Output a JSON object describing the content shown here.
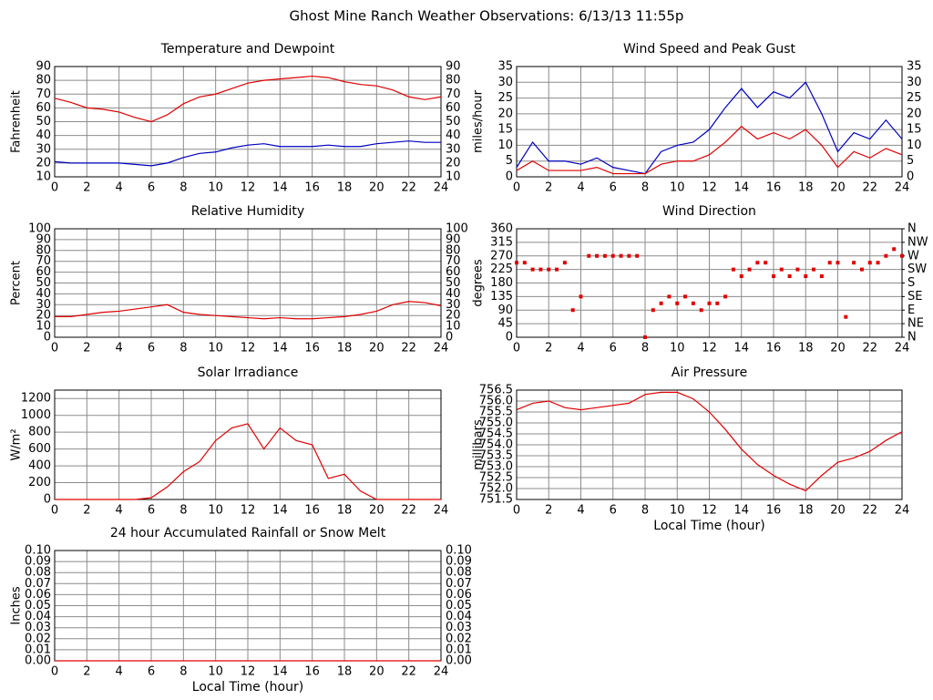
{
  "title": "Ghost Mine Ranch Weather Observations: 6/13/13 11:55p",
  "chart_data": [
    {
      "type": "line",
      "title": "Temperature and Dewpoint",
      "ylabel": "Fahrenheit",
      "mirror_y_labels": true,
      "x": [
        0,
        1,
        2,
        3,
        4,
        5,
        6,
        7,
        8,
        9,
        10,
        11,
        12,
        13,
        14,
        15,
        16,
        17,
        18,
        19,
        20,
        21,
        22,
        23,
        24
      ],
      "series": [
        {
          "color": "#e00000",
          "values": [
            67,
            64,
            60,
            59,
            57,
            53,
            50,
            55,
            63,
            68,
            70,
            74,
            78,
            80,
            81,
            82,
            83,
            82,
            79,
            77,
            76,
            73,
            68,
            66,
            68
          ]
        },
        {
          "color": "#0000c0",
          "values": [
            21,
            20,
            20,
            20,
            20,
            19,
            18,
            20,
            24,
            27,
            28,
            31,
            33,
            34,
            32,
            32,
            32,
            33,
            32,
            32,
            34,
            35,
            36,
            35,
            35
          ]
        }
      ],
      "xlim": [
        0,
        24
      ],
      "xticks": [
        0,
        2,
        4,
        6,
        8,
        10,
        12,
        14,
        16,
        18,
        20,
        22,
        24
      ],
      "ylim": [
        10,
        90
      ],
      "yticks": [
        10,
        20,
        30,
        40,
        50,
        60,
        70,
        80,
        90
      ],
      "grid": true
    },
    {
      "type": "line",
      "title": "Wind Speed and Peak Gust",
      "ylabel": "miles/hour",
      "mirror_y_labels": true,
      "x": [
        0,
        1,
        2,
        3,
        4,
        5,
        6,
        7,
        8,
        9,
        10,
        11,
        12,
        13,
        14,
        15,
        16,
        17,
        18,
        19,
        20,
        21,
        22,
        23,
        24
      ],
      "series": [
        {
          "color": "#0000c0",
          "values": [
            3,
            11,
            5,
            5,
            4,
            6,
            3,
            2,
            1,
            8,
            10,
            11,
            15,
            22,
            28,
            22,
            27,
            25,
            30,
            20,
            8,
            14,
            12,
            18,
            12
          ]
        },
        {
          "color": "#e00000",
          "values": [
            2,
            5,
            2,
            2,
            2,
            3,
            1,
            1,
            1,
            4,
            5,
            5,
            7,
            11,
            16,
            12,
            14,
            12,
            15,
            10,
            3,
            8,
            6,
            9,
            7
          ]
        }
      ],
      "xlim": [
        0,
        24
      ],
      "xticks": [
        0,
        2,
        4,
        6,
        8,
        10,
        12,
        14,
        16,
        18,
        20,
        22,
        24
      ],
      "ylim": [
        0,
        35
      ],
      "yticks": [
        0,
        5,
        10,
        15,
        20,
        25,
        30,
        35
      ],
      "grid": true
    },
    {
      "type": "line",
      "title": "Relative Humidity",
      "ylabel": "Percent",
      "mirror_y_labels": true,
      "x": [
        0,
        1,
        2,
        3,
        4,
        5,
        6,
        7,
        8,
        9,
        10,
        11,
        12,
        13,
        14,
        15,
        16,
        17,
        18,
        19,
        20,
        21,
        22,
        23,
        24
      ],
      "series": [
        {
          "color": "#e00000",
          "values": [
            19,
            19,
            21,
            23,
            24,
            26,
            28,
            30,
            23,
            21,
            20,
            19,
            18,
            17,
            18,
            17,
            17,
            18,
            19,
            21,
            24,
            30,
            33,
            32,
            29
          ]
        }
      ],
      "xlim": [
        0,
        24
      ],
      "xticks": [
        0,
        2,
        4,
        6,
        8,
        10,
        12,
        14,
        16,
        18,
        20,
        22,
        24
      ],
      "ylim": [
        0,
        100
      ],
      "yticks": [
        0,
        10,
        20,
        30,
        40,
        50,
        60,
        70,
        80,
        90,
        100
      ],
      "grid": true
    },
    {
      "type": "scatter",
      "title": "Wind Direction",
      "ylabel": "degrees",
      "mirror_y_labels": false,
      "x": [
        0,
        0.5,
        1,
        1.5,
        2,
        2.5,
        3,
        3.5,
        4,
        4.5,
        5,
        5.5,
        6,
        6.5,
        7,
        7.5,
        8,
        8.5,
        9,
        9.5,
        10,
        10.5,
        11,
        11.5,
        12,
        12.5,
        13,
        13.5,
        14,
        14.5,
        15,
        15.5,
        16,
        16.5,
        17,
        17.5,
        18,
        18.5,
        19,
        19.5,
        20,
        20.5,
        21,
        21.5,
        22,
        22.5,
        23,
        23.5,
        24
      ],
      "series": [
        {
          "color": "#e00000",
          "values": [
            247.5,
            247.5,
            225,
            225,
            225,
            225,
            247.5,
            90,
            135,
            270,
            270,
            270,
            270,
            270,
            270,
            270,
            0,
            90,
            112.5,
            135,
            112.5,
            135,
            112.5,
            90,
            112.5,
            112.5,
            135,
            225,
            202.5,
            225,
            247.5,
            247.5,
            202.5,
            225,
            202.5,
            225,
            202.5,
            225,
            202.5,
            247.5,
            247.5,
            67.5,
            247.5,
            225,
            247.5,
            247.5,
            270,
            292.5,
            270
          ]
        }
      ],
      "xlim": [
        0,
        24
      ],
      "xticks": [
        0,
        2,
        4,
        6,
        8,
        10,
        12,
        14,
        16,
        18,
        20,
        22,
        24
      ],
      "ylim": [
        0,
        360
      ],
      "yticks": [
        0,
        45,
        90,
        135,
        180,
        225,
        270,
        315,
        360
      ],
      "y2lim": [
        0,
        360
      ],
      "y2ticks": [
        {
          "value": 0,
          "label": "N"
        },
        {
          "value": 45,
          "label": "NE"
        },
        {
          "value": 90,
          "label": "E"
        },
        {
          "value": 135,
          "label": "SE"
        },
        {
          "value": 180,
          "label": "S"
        },
        {
          "value": 225,
          "label": "SW"
        },
        {
          "value": 270,
          "label": "W"
        },
        {
          "value": 315,
          "label": "NW"
        },
        {
          "value": 360,
          "label": "N"
        }
      ],
      "grid": true
    },
    {
      "type": "line",
      "title": "Solar Irradiance",
      "ylabel": "W/m²",
      "mirror_y_labels": false,
      "x": [
        0,
        1,
        2,
        3,
        4,
        5,
        6,
        7,
        8,
        9,
        10,
        11,
        12,
        13,
        14,
        15,
        16,
        17,
        18,
        19,
        20,
        21,
        22,
        23,
        24
      ],
      "series": [
        {
          "color": "#e00000",
          "values": [
            0,
            0,
            0,
            0,
            0,
            0,
            20,
            150,
            330,
            450,
            700,
            850,
            900,
            600,
            850,
            700,
            650,
            250,
            300,
            100,
            0,
            0,
            0,
            0,
            0
          ]
        }
      ],
      "xlim": [
        0,
        24
      ],
      "xticks": [
        0,
        2,
        4,
        6,
        8,
        10,
        12,
        14,
        16,
        18,
        20,
        22,
        24
      ],
      "ylim": [
        0,
        1300
      ],
      "yticks": [
        0,
        200,
        400,
        600,
        800,
        1000,
        1200
      ],
      "grid": true
    },
    {
      "type": "line",
      "title": "Air Pressure",
      "ylabel": "millibars",
      "xlabel": "Local Time (hour)",
      "mirror_y_labels": false,
      "x": [
        0,
        1,
        2,
        3,
        4,
        5,
        6,
        7,
        8,
        9,
        10,
        11,
        12,
        13,
        14,
        15,
        16,
        17,
        18,
        19,
        20,
        21,
        22,
        23,
        24
      ],
      "series": [
        {
          "color": "#e00000",
          "values": [
            755.6,
            755.9,
            756.0,
            755.7,
            755.6,
            755.7,
            755.8,
            755.9,
            756.3,
            756.4,
            756.4,
            756.1,
            755.5,
            754.7,
            753.8,
            753.1,
            752.6,
            752.2,
            751.9,
            752.6,
            753.2,
            753.4,
            753.7,
            754.2,
            754.6
          ]
        }
      ],
      "xlim": [
        0,
        24
      ],
      "xticks": [
        0,
        2,
        4,
        6,
        8,
        10,
        12,
        14,
        16,
        18,
        20,
        22,
        24
      ],
      "ylim": [
        751.5,
        756.5
      ],
      "yticks": [
        751.5,
        {
          "value": 752,
          "label": "752.0"
        },
        752.5,
        {
          "value": 753,
          "label": "753.0"
        },
        753.5,
        {
          "value": 754,
          "label": "754.0"
        },
        754.5,
        {
          "value": 755,
          "label": "755.0"
        },
        755.5,
        {
          "value": 756,
          "label": "756.0"
        },
        756.5
      ],
      "grid": true
    },
    {
      "type": "line",
      "title": "24 hour Accumulated Rainfall or Snow Melt",
      "ylabel": "Inches",
      "xlabel": "Local Time (hour)",
      "mirror_y_labels": true,
      "x": [
        0,
        1,
        2,
        3,
        4,
        5,
        6,
        7,
        8,
        9,
        10,
        11,
        12,
        13,
        14,
        15,
        16,
        17,
        18,
        19,
        20,
        21,
        22,
        23,
        24
      ],
      "series": [
        {
          "color": "#e00000",
          "values": [
            0,
            0,
            0,
            0,
            0,
            0,
            0,
            0,
            0,
            0,
            0,
            0,
            0,
            0,
            0,
            0,
            0,
            0,
            0,
            0,
            0,
            0,
            0,
            0,
            0
          ]
        }
      ],
      "xlim": [
        0,
        24
      ],
      "xticks": [
        0,
        2,
        4,
        6,
        8,
        10,
        12,
        14,
        16,
        18,
        20,
        22,
        24
      ],
      "ylim": [
        0,
        0.1
      ],
      "yticks": [
        {
          "value": 0,
          "label": "0.00"
        },
        {
          "value": 0.01,
          "label": "0.01"
        },
        {
          "value": 0.02,
          "label": "0.02"
        },
        {
          "value": 0.03,
          "label": "0.03"
        },
        {
          "value": 0.04,
          "label": "0.04"
        },
        {
          "value": 0.05,
          "label": "0.05"
        },
        {
          "value": 0.06,
          "label": "0.06"
        },
        {
          "value": 0.07,
          "label": "0.07"
        },
        {
          "value": 0.08,
          "label": "0.08"
        },
        {
          "value": 0.09,
          "label": "0.09"
        },
        {
          "value": 0.1,
          "label": "0.10"
        }
      ],
      "grid": true
    }
  ]
}
